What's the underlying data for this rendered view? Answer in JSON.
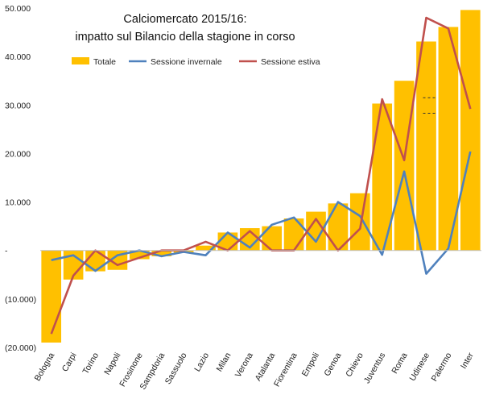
{
  "chart_data": {
    "type": "bar",
    "title": "Calciomercato 2015/16:",
    "subtitle": "impatto sul Bilancio della stagione in corso",
    "legend_position": "top",
    "ylim": [
      -20000,
      50000
    ],
    "y_ticks": [
      {
        "value": 50000,
        "label": "50.000"
      },
      {
        "value": 40000,
        "label": "40.000"
      },
      {
        "value": 30000,
        "label": "30.000"
      },
      {
        "value": 20000,
        "label": "20.000"
      },
      {
        "value": 10000,
        "label": "10.000"
      },
      {
        "value": 0,
        "label": "-"
      },
      {
        "value": -10000,
        "label": "(10.000)"
      },
      {
        "value": -20000,
        "label": "(20.000)"
      }
    ],
    "categories": [
      "Bologna",
      "Carpi",
      "Torino",
      "Napoli",
      "Frosinone",
      "Sampdoria",
      "Sassuolo",
      "Lazio",
      "Milan",
      "Verona",
      "Atalanta",
      "Fiorentina",
      "Empoli",
      "Genoa",
      "Chievo",
      "Juventus",
      "Roma",
      "Udinese",
      "Palermo",
      "Inter"
    ],
    "series": [
      {
        "name": "Totale",
        "kind": "bar",
        "color": "#FFC000",
        "values": [
          -19000,
          -6000,
          -4300,
          -4000,
          -1800,
          -1200,
          -500,
          1000,
          3700,
          4600,
          5000,
          6600,
          8000,
          9700,
          11800,
          30300,
          35000,
          43100,
          46100,
          49600
        ]
      },
      {
        "name": "Sessione invernale",
        "kind": "line",
        "color": "#4F81BD",
        "values": [
          -2000,
          -1000,
          -4200,
          -1000,
          0,
          -1200,
          -300,
          -1000,
          3700,
          600,
          5300,
          6800,
          1800,
          10000,
          7100,
          -900,
          16300,
          -4800,
          400,
          20400
        ]
      },
      {
        "name": "Sessione estiva",
        "kind": "line",
        "color": "#C0504D",
        "values": [
          -17200,
          -5200,
          0,
          -3000,
          -1500,
          0,
          0,
          1800,
          0,
          4000,
          0,
          0,
          6500,
          0,
          4500,
          31200,
          18600,
          48000,
          45800,
          29200
        ]
      }
    ]
  }
}
